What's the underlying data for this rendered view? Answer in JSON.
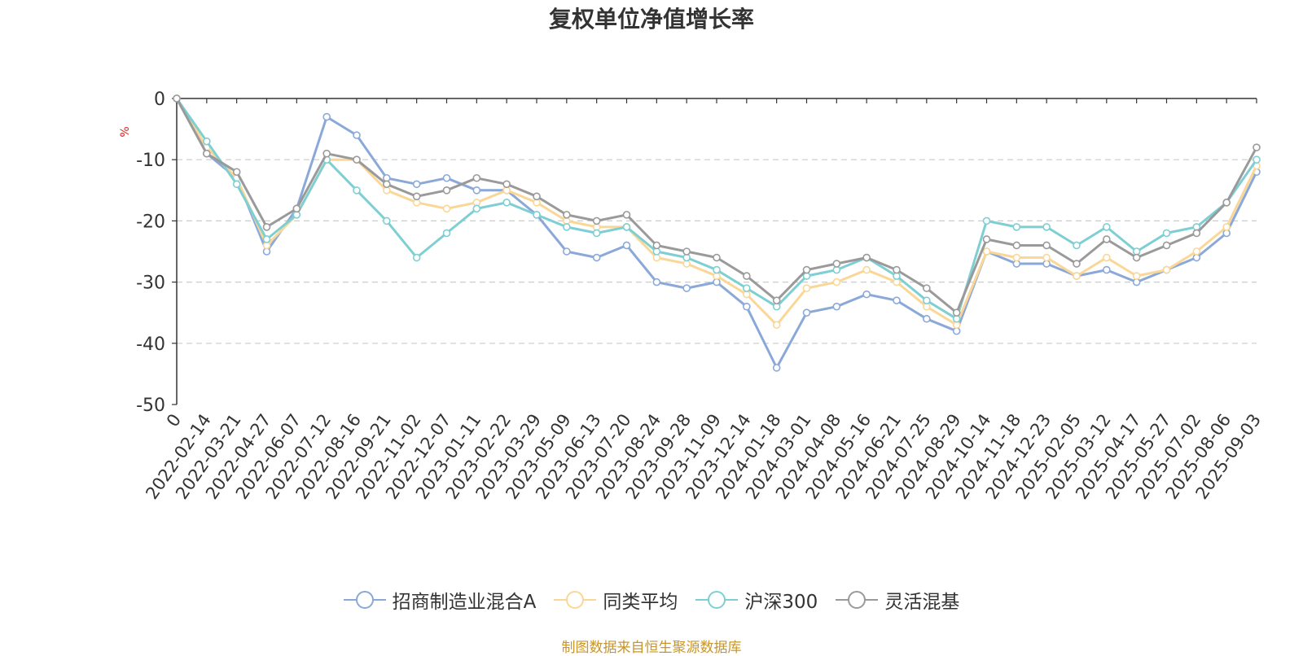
{
  "chart_data": {
    "type": "line",
    "title": "复权单位净值增长率",
    "ylabel": "%",
    "ylim": [
      -50,
      0
    ],
    "yticks": [
      0,
      -10,
      -20,
      -30,
      -40,
      -50
    ],
    "grid": true,
    "legend_position": "bottom",
    "x": [
      "0",
      "2022-02-14",
      "2022-03-21",
      "2022-04-27",
      "2022-06-07",
      "2022-07-12",
      "2022-08-16",
      "2022-09-21",
      "2022-11-02",
      "2022-12-07",
      "2023-01-11",
      "2023-02-22",
      "2023-03-29",
      "2023-05-09",
      "2023-06-13",
      "2023-07-20",
      "2023-08-24",
      "2023-09-28",
      "2023-11-09",
      "2023-12-14",
      "2024-01-18",
      "2024-03-01",
      "2024-04-08",
      "2024-05-16",
      "2024-06-21",
      "2024-07-25",
      "2024-08-29",
      "2024-10-14",
      "2024-11-18",
      "2024-12-23",
      "2025-02-05",
      "2025-03-12",
      "2025-04-17",
      "2025-05-27",
      "2025-07-02",
      "2025-08-06",
      "2025-09-03"
    ],
    "series": [
      {
        "name": "招商制造业混合A",
        "color": "#8aa8d8",
        "values": [
          0,
          -9,
          -13,
          -25,
          -18,
          -3,
          -6,
          -13,
          -14,
          -13,
          -15,
          -15,
          -19,
          -25,
          -26,
          -24,
          -30,
          -31,
          -30,
          -34,
          -44,
          -35,
          -34,
          -32,
          -33,
          -36,
          -38,
          -25,
          -27,
          -27,
          -29,
          -28,
          -30,
          -28,
          -26,
          -22,
          -12
        ]
      },
      {
        "name": "同类平均",
        "color": "#fad797",
        "values": [
          0,
          -8,
          -13,
          -24,
          -19,
          -10,
          -10,
          -15,
          -17,
          -18,
          -17,
          -15,
          -17,
          -20,
          -21,
          -21,
          -26,
          -27,
          -29,
          -32,
          -37,
          -31,
          -30,
          -28,
          -30,
          -34,
          -37,
          -25,
          -26,
          -26,
          -29,
          -26,
          -29,
          -28,
          -25,
          -21,
          -11
        ]
      },
      {
        "name": "沪深300",
        "color": "#7ecfd3",
        "values": [
          0,
          -7,
          -14,
          -23,
          -19,
          -10,
          -15,
          -20,
          -26,
          -22,
          -18,
          -17,
          -19,
          -21,
          -22,
          -21,
          -25,
          -26,
          -28,
          -31,
          -34,
          -29,
          -28,
          -26,
          -29,
          -33,
          -36,
          -20,
          -21,
          -21,
          -24,
          -21,
          -25,
          -22,
          -21,
          -17,
          -10
        ]
      },
      {
        "name": "灵活混基",
        "color": "#9a9a9a",
        "values": [
          0,
          -9,
          -12,
          -21,
          -18,
          -9,
          -10,
          -14,
          -16,
          -15,
          -13,
          -14,
          -16,
          -19,
          -20,
          -19,
          -24,
          -25,
          -26,
          -29,
          -33,
          -28,
          -27,
          -26,
          -28,
          -31,
          -35,
          -23,
          -24,
          -24,
          -27,
          -23,
          -26,
          -24,
          -22,
          -17,
          -8
        ]
      }
    ],
    "source_note": "制图数据来自恒生聚源数据库"
  }
}
